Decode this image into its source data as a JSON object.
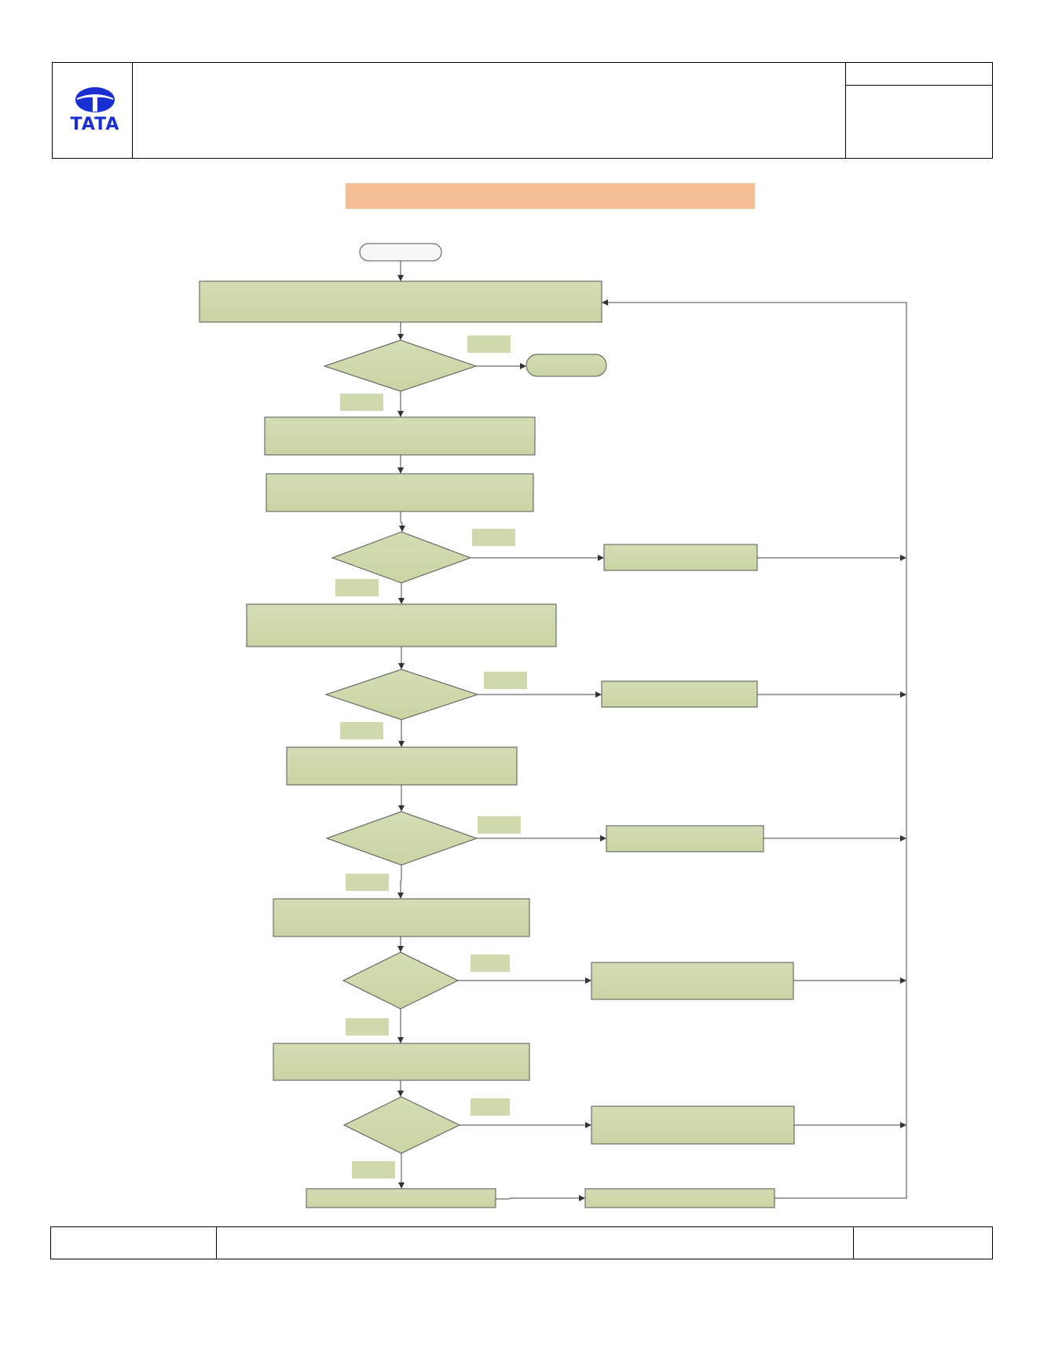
{
  "header": {
    "logo_text": "TATA",
    "logo_color": "#1a2fd1",
    "title": "",
    "doc_ref": "",
    "doc_info": ""
  },
  "title_banner": {
    "text": "",
    "color": "#f4bf95"
  },
  "flowchart": {
    "fill_color": "#cfd9ae",
    "terminal_fill": "#f5f5f5",
    "start_label": "",
    "end_label": "",
    "steps": [
      "",
      "",
      "",
      "",
      "",
      "",
      "",
      "",
      ""
    ],
    "decisions": [
      "",
      "",
      "",
      "",
      "",
      ""
    ],
    "side_actions": [
      "",
      "",
      "",
      "",
      "",
      ""
    ],
    "branch_labels": [
      "",
      "",
      "",
      "",
      "",
      "",
      "",
      "",
      "",
      "",
      "",
      ""
    ]
  },
  "footer": {
    "left": "",
    "center": "",
    "right": ""
  }
}
